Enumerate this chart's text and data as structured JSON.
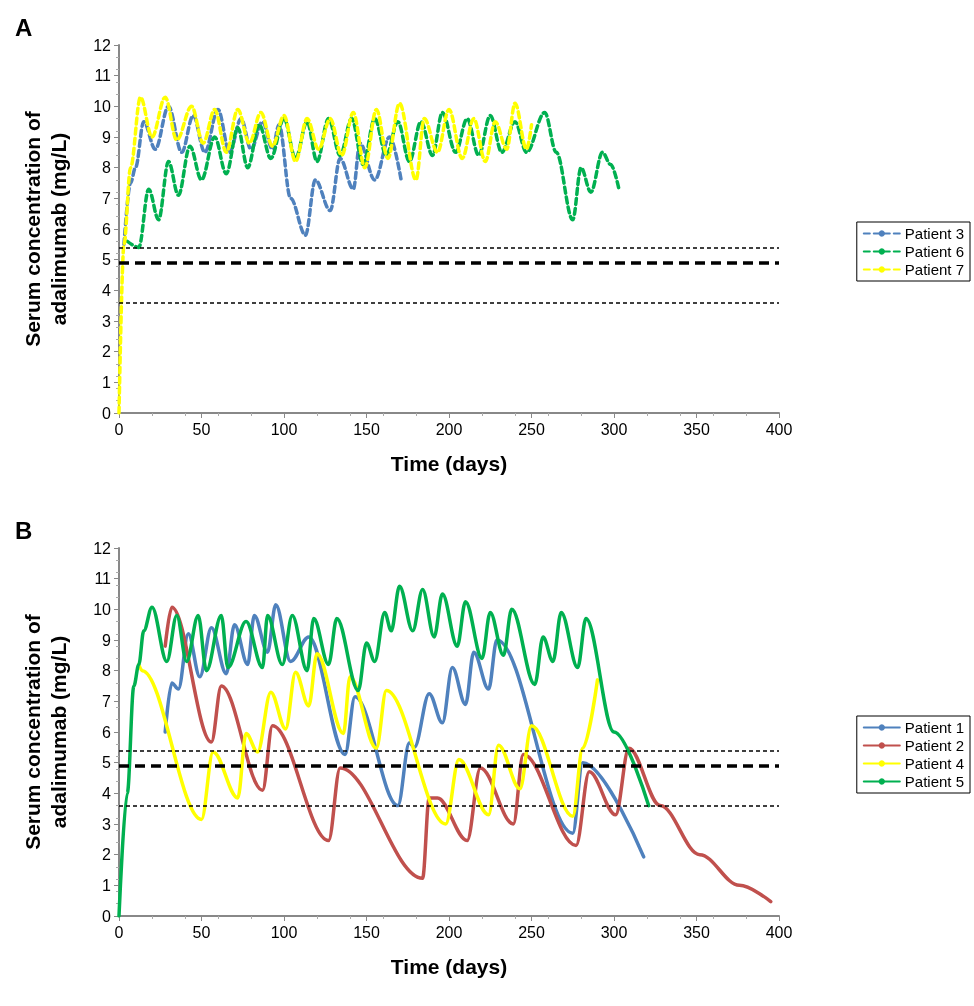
{
  "chart_data": [
    {
      "type": "line",
      "title": "A",
      "xlabel": "Time (days)",
      "ylabel": "Serum concentration of\nadalimumab (mg/L)",
      "xlim": [
        0,
        400
      ],
      "xticks": [
        0,
        50,
        100,
        150,
        200,
        250,
        300,
        350,
        400
      ],
      "ylim": [
        0,
        12
      ],
      "yticks": [
        0,
        1,
        2,
        3,
        4,
        5,
        6,
        7,
        8,
        9,
        10,
        11,
        12
      ],
      "grid": false,
      "legend": "right",
      "marker": "none",
      "line_style": "dashed",
      "ref_lines": [
        {
          "axis": "y",
          "value": 5.4,
          "color": "#000000",
          "line_style": "dotted"
        },
        {
          "axis": "y",
          "value": 4.9,
          "color": "#000000",
          "line_style": "dashed"
        },
        {
          "axis": "y",
          "value": 3.6,
          "color": "#000000",
          "line_style": "dotted"
        }
      ],
      "series": [
        {
          "name": "Patient 3",
          "color": "#4f81bd",
          "x": [
            3,
            7,
            10,
            15,
            22,
            30,
            38,
            45,
            52,
            60,
            67,
            74,
            80,
            87,
            93,
            97,
            104,
            113,
            119,
            128,
            134,
            142,
            146,
            155,
            164,
            171
          ],
          "values": [
            5.5,
            7.5,
            8,
            9.5,
            8.6,
            10,
            8.5,
            9.7,
            8.5,
            9.9,
            8.5,
            9.6,
            8.6,
            9.5,
            8.6,
            9.4,
            7,
            5.8,
            7.6,
            6.6,
            8.3,
            7.3,
            8.8,
            7.6,
            9,
            7.6
          ]
        },
        {
          "name": "Patient 6",
          "color": "#00b050",
          "x": [
            5,
            12,
            18,
            24,
            30,
            36,
            43,
            50,
            58,
            65,
            72,
            78,
            85,
            92,
            100,
            107,
            114,
            120,
            127,
            134,
            141,
            148,
            155,
            162,
            169,
            176,
            183,
            190,
            196,
            204,
            211,
            218,
            225,
            232,
            240,
            247,
            258,
            265,
            275,
            280,
            286,
            293,
            298,
            303
          ],
          "values": [
            5.6,
            5.4,
            7.3,
            6.3,
            8.2,
            7.1,
            8.7,
            7.6,
            9,
            7.8,
            9.3,
            8,
            9.4,
            8.3,
            9.6,
            8.3,
            9.5,
            8.2,
            9.6,
            8.4,
            9.6,
            8.1,
            9.6,
            8.4,
            9.5,
            8.2,
            9.5,
            8.4,
            9.8,
            8.5,
            9.6,
            8.4,
            9.7,
            8.5,
            9.5,
            8.5,
            9.8,
            8.5,
            6.3,
            8,
            7.2,
            8.5,
            8.1,
            7.3
          ]
        },
        {
          "name": "Patient 7",
          "color": "#ffff00",
          "x": [
            0,
            3,
            7,
            13,
            20,
            28,
            35,
            44,
            51,
            58,
            65,
            72,
            79,
            86,
            93,
            100,
            107,
            114,
            121,
            128,
            135,
            142,
            149,
            156,
            163,
            170,
            180,
            185,
            193,
            200,
            208,
            215,
            222,
            228,
            235,
            240,
            247,
            250
          ],
          "values": [
            0,
            5.5,
            8,
            10.3,
            9,
            10.3,
            8.9,
            10,
            8.8,
            9.9,
            8.5,
            9.9,
            8.8,
            9.8,
            8.7,
            9.7,
            8.2,
            9.6,
            8.6,
            9.6,
            8.4,
            9.8,
            8,
            9.9,
            8.3,
            10.1,
            7.6,
            9.6,
            8.5,
            9.9,
            8.3,
            9.6,
            8.2,
            9.5,
            8.6,
            10.1,
            8.6,
            9.4
          ]
        }
      ]
    },
    {
      "type": "line",
      "title": "B",
      "xlabel": "Time (days)",
      "ylabel": "Serum concentration of\nadalimumab (mg/L)",
      "xlim": [
        0,
        400
      ],
      "xticks": [
        0,
        50,
        100,
        150,
        200,
        250,
        300,
        350,
        400
      ],
      "ylim": [
        0,
        12
      ],
      "yticks": [
        0,
        1,
        2,
        3,
        4,
        5,
        6,
        7,
        8,
        9,
        10,
        11,
        12
      ],
      "grid": false,
      "legend": "right",
      "marker": "none",
      "line_style": "solid",
      "ref_lines": [
        {
          "axis": "y",
          "value": 5.4,
          "color": "#000000",
          "line_style": "dotted"
        },
        {
          "axis": "y",
          "value": 4.9,
          "color": "#000000",
          "line_style": "dashed"
        },
        {
          "axis": "y",
          "value": 3.6,
          "color": "#000000",
          "line_style": "dotted"
        }
      ],
      "series": [
        {
          "name": "Patient 1",
          "color": "#4f81bd",
          "x": [
            28,
            32,
            36,
            42,
            49,
            56,
            65,
            70,
            78,
            82,
            90,
            95,
            104,
            115,
            137,
            143,
            169,
            176,
            179,
            188,
            196,
            202,
            210,
            215,
            224,
            229,
            275,
            281,
            318
          ],
          "values": [
            6,
            7.6,
            7.4,
            9.2,
            7.8,
            9.4,
            7.9,
            9.5,
            8.2,
            9.8,
            8.6,
            10.15,
            8.3,
            9.1,
            5.27,
            7.15,
            3.6,
            5.65,
            5.5,
            7.25,
            6.3,
            8.1,
            6.9,
            8.6,
            7.4,
            9,
            2.7,
            5,
            1.93
          ]
        },
        {
          "name": "Patient 2",
          "color": "#c0504d",
          "x": [
            28,
            32,
            56,
            62,
            87,
            93,
            127,
            134,
            184,
            188,
            193,
            211,
            219,
            239,
            245,
            277,
            285,
            301,
            309,
            328,
            352,
            376,
            395
          ],
          "values": [
            8.8,
            10.07,
            5.67,
            7.5,
            4.1,
            6.2,
            2.46,
            4.83,
            1.23,
            3.85,
            3.85,
            2.46,
            4.83,
            3,
            5.27,
            2.3,
            4.7,
            3.3,
            5.47,
            3.6,
            2,
            1,
            0.47
          ]
        },
        {
          "name": "Patient 4",
          "color": "#ffff00",
          "x": [
            12,
            14,
            50,
            57,
            72,
            77,
            84,
            92,
            101,
            107,
            115,
            120,
            136,
            140,
            156,
            162,
            198,
            206,
            224,
            230,
            243,
            250,
            275,
            281,
            290
          ],
          "values": [
            8.2,
            8,
            3.15,
            5.35,
            3.85,
            5.95,
            5.35,
            7.3,
            6.1,
            7.95,
            6.85,
            8.55,
            5.95,
            7.8,
            5.47,
            7.35,
            3,
            5.1,
            3.3,
            5.57,
            4.15,
            6.2,
            3.25,
            5.47,
            7.7
          ]
        },
        {
          "name": "Patient 5",
          "color": "#00b050",
          "x": [
            0,
            5,
            9,
            12,
            15,
            20,
            29,
            35,
            41,
            48,
            53,
            62,
            66,
            77,
            87,
            90,
            99,
            105,
            114,
            118,
            127,
            132,
            145,
            150,
            155,
            161,
            165,
            170,
            178,
            184,
            191,
            196,
            205,
            210,
            220,
            225,
            233,
            238,
            252,
            257,
            263,
            268,
            278,
            283,
            300,
            321
          ],
          "values": [
            0,
            4,
            7.5,
            8.2,
            9.3,
            10.07,
            8.3,
            9.8,
            8.3,
            9.8,
            8,
            9.8,
            8.1,
            9.6,
            8.1,
            9.8,
            8.2,
            9.8,
            8,
            9.7,
            8.2,
            9.7,
            7.35,
            8.9,
            8.3,
            9.9,
            9.3,
            10.75,
            9.3,
            10.65,
            9.1,
            10.5,
            8.8,
            10.25,
            8.4,
            9.9,
            8.5,
            10,
            7.55,
            9.1,
            8.3,
            9.9,
            8.1,
            9.7,
            6,
            3.6
          ]
        }
      ]
    }
  ]
}
